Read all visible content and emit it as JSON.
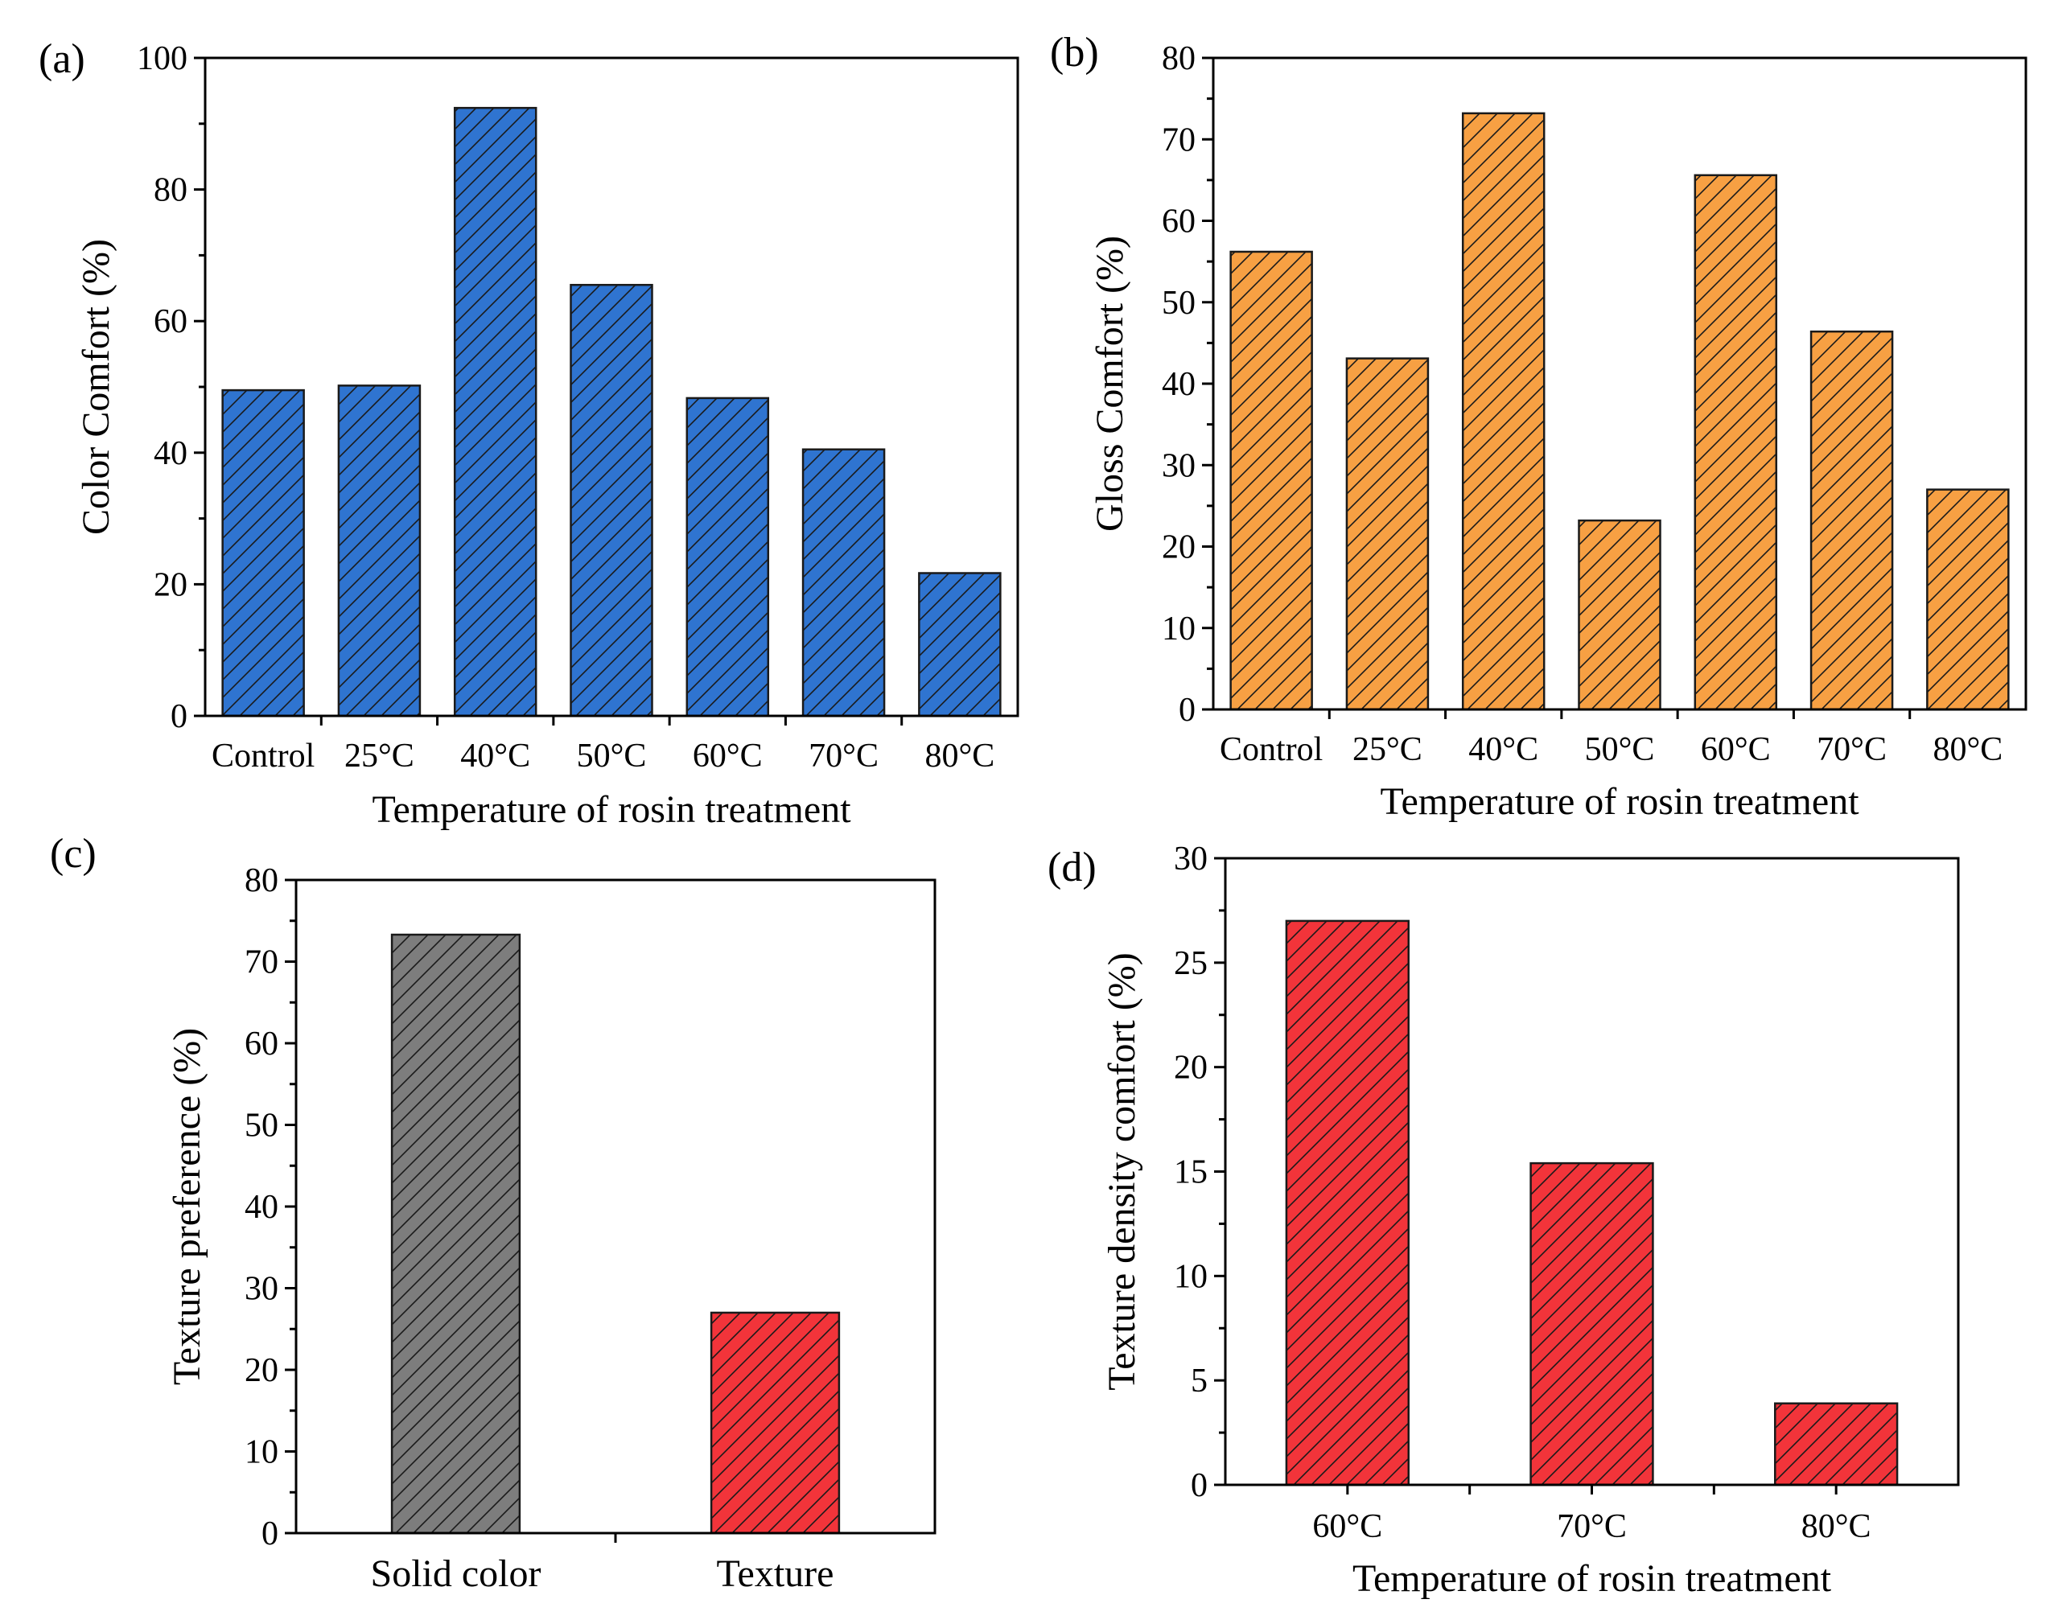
{
  "chart_data": [
    {
      "panel": "(a)",
      "type": "bar",
      "categories": [
        "Control",
        "25°C",
        "40°C",
        "50°C",
        "60°C",
        "70°C",
        "80°C"
      ],
      "values": [
        49.5,
        50.2,
        92.4,
        65.5,
        48.3,
        40.5,
        21.7
      ],
      "xlabel": "Temperature of rosin treatment",
      "ylabel": "Color Comfort (%)",
      "ylim": [
        0,
        100
      ],
      "yticks": [
        0,
        20,
        40,
        60,
        80,
        100
      ],
      "color": "#2f74d0",
      "hatch": "diagonal"
    },
    {
      "panel": "(b)",
      "type": "bar",
      "categories": [
        "Control",
        "25°C",
        "40°C",
        "50°C",
        "60°C",
        "70°C",
        "80°C"
      ],
      "values": [
        56.2,
        43.1,
        73.2,
        23.2,
        65.6,
        46.4,
        27.0
      ],
      "xlabel": "Temperature of rosin treatment",
      "ylabel": "Gloss Comfort (%)",
      "ylim": [
        0,
        80
      ],
      "yticks": [
        0,
        10,
        20,
        30,
        40,
        50,
        60,
        70,
        80
      ],
      "color": "#f7a043",
      "hatch": "diagonal"
    },
    {
      "panel": "(c)",
      "type": "bar",
      "categories": [
        "Solid color",
        "Texture"
      ],
      "values": [
        73.3,
        27.0
      ],
      "xlabel": "",
      "ylabel": "Texture preference (%)",
      "ylim": [
        0,
        80
      ],
      "yticks": [
        0,
        10,
        20,
        30,
        40,
        50,
        60,
        70,
        80
      ],
      "colors": [
        "#7d7d7d",
        "#f2343a"
      ],
      "hatch": "diagonal"
    },
    {
      "panel": "(d)",
      "type": "bar",
      "categories": [
        "60°C",
        "70°C",
        "80°C"
      ],
      "values": [
        27.0,
        15.4,
        3.9
      ],
      "xlabel": "Temperature of rosin treatment",
      "ylabel": "Texture density comfort (%)",
      "ylim": [
        0,
        30
      ],
      "yticks": [
        0,
        5,
        10,
        15,
        20,
        25,
        30
      ],
      "color": "#f2343a",
      "hatch": "diagonal"
    }
  ]
}
